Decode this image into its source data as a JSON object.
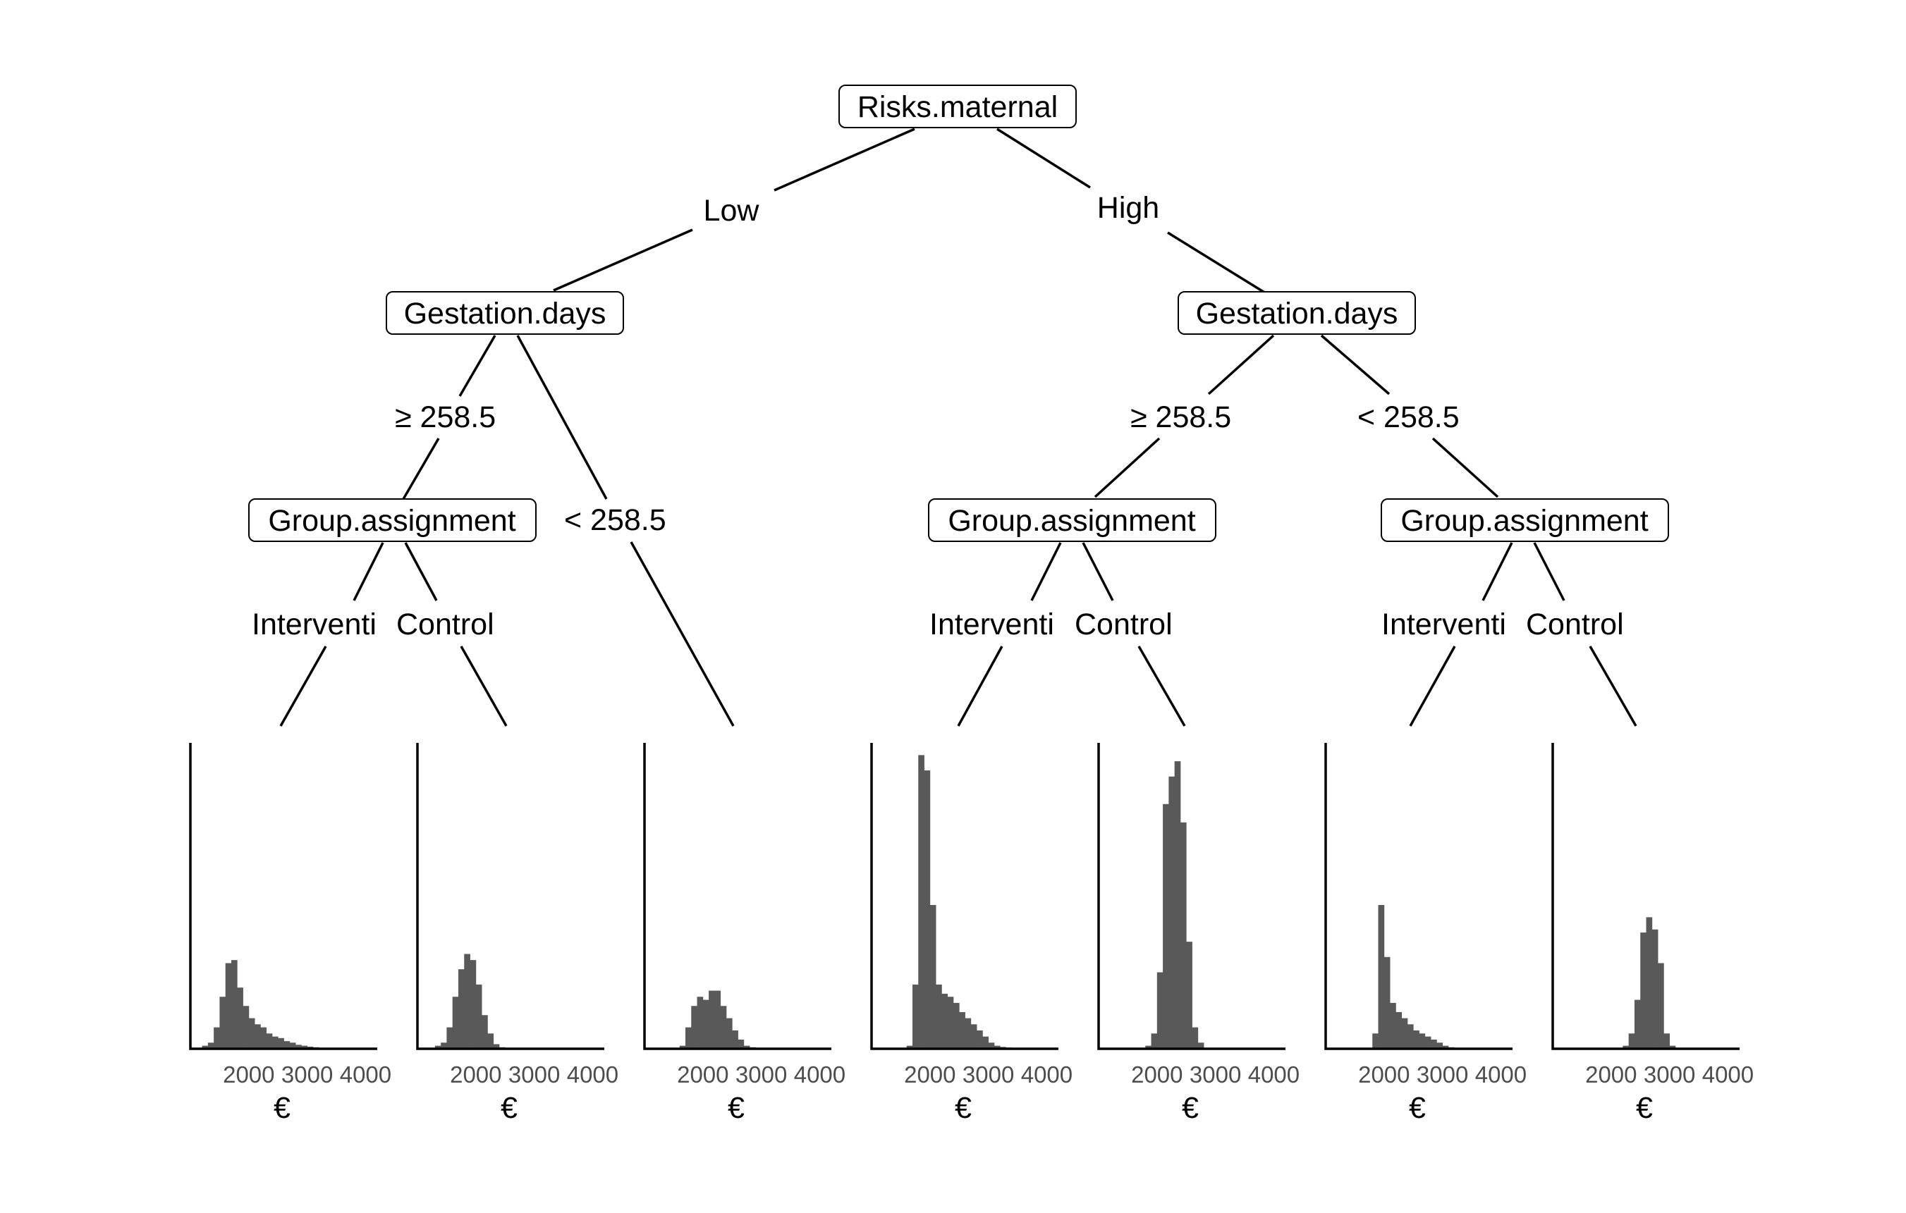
{
  "tree": {
    "root": {
      "label": "Risks.maternal",
      "branches": [
        {
          "label": "Low",
          "node": {
            "label": "Gestation.days",
            "branches": [
              {
                "label": "≥  258.5",
                "node": {
                  "label": "Group.assignment",
                  "branches": [
                    {
                      "label": "Interventi",
                      "leaf": 0
                    },
                    {
                      "label": "Control",
                      "leaf": 1
                    }
                  ]
                }
              },
              {
                "label": "<  258.5",
                "leaf": 2
              }
            ]
          }
        },
        {
          "label": "High",
          "node": {
            "label": "Gestation.days",
            "branches": [
              {
                "label": "≥  258.5",
                "node": {
                  "label": "Group.assignment",
                  "branches": [
                    {
                      "label": "Interventi",
                      "leaf": 3
                    },
                    {
                      "label": "Control",
                      "leaf": 4
                    }
                  ]
                }
              },
              {
                "label": "<  258.5",
                "node": {
                  "label": "Group.assignment",
                  "branches": [
                    {
                      "label": "Interventi",
                      "leaf": 5
                    },
                    {
                      "label": "Control",
                      "leaf": 6
                    }
                  ]
                }
              }
            ]
          }
        }
      ]
    }
  },
  "chart_data": {
    "type": "bar",
    "description_free": true,
    "bar_color": "#595959",
    "xlim": [
      1000,
      4200
    ],
    "ylim": [
      0,
      1
    ],
    "bin_width": 100,
    "x_ticks": [
      2000,
      3000,
      4000
    ],
    "x_tick_labels": [
      "2000",
      "3000",
      "4000"
    ],
    "xlabel": "€",
    "leaves": [
      {
        "bin_start": 1200,
        "values": [
          0.01,
          0.02,
          0.07,
          0.17,
          0.28,
          0.29,
          0.2,
          0.14,
          0.1,
          0.08,
          0.07,
          0.05,
          0.04,
          0.035,
          0.025,
          0.02,
          0.013,
          0.01,
          0.007,
          0.005,
          0.003,
          0.002,
          0.001,
          0.002
        ]
      },
      {
        "bin_start": 1300,
        "values": [
          0.01,
          0.02,
          0.07,
          0.17,
          0.26,
          0.31,
          0.29,
          0.21,
          0.11,
          0.05,
          0.015,
          0.005,
          0.002,
          0.001
        ]
      },
      {
        "bin_start": 1600,
        "values": [
          0.01,
          0.07,
          0.14,
          0.17,
          0.16,
          0.19,
          0.19,
          0.14,
          0.1,
          0.06,
          0.03,
          0.01,
          0.005,
          0.003,
          0.002,
          0.001,
          0.002
        ]
      },
      {
        "bin_start": 1600,
        "values": [
          0.01,
          0.21,
          0.96,
          0.91,
          0.47,
          0.21,
          0.18,
          0.17,
          0.15,
          0.12,
          0.1,
          0.08,
          0.06,
          0.04,
          0.02,
          0.01,
          0.006,
          0.004,
          0.003,
          0.002,
          0.002
        ]
      },
      {
        "bin_start": 1800,
        "values": [
          0.01,
          0.05,
          0.25,
          0.8,
          0.89,
          0.94,
          0.74,
          0.35,
          0.07,
          0.02
        ]
      },
      {
        "bin_start": 1800,
        "values": [
          0.05,
          0.47,
          0.3,
          0.15,
          0.12,
          0.1,
          0.08,
          0.06,
          0.05,
          0.04,
          0.03,
          0.02,
          0.01,
          0.005,
          0.003,
          0.002
        ]
      },
      {
        "bin_start": 2200,
        "values": [
          0.01,
          0.05,
          0.16,
          0.38,
          0.43,
          0.39,
          0.28,
          0.05,
          0.01
        ]
      }
    ]
  }
}
